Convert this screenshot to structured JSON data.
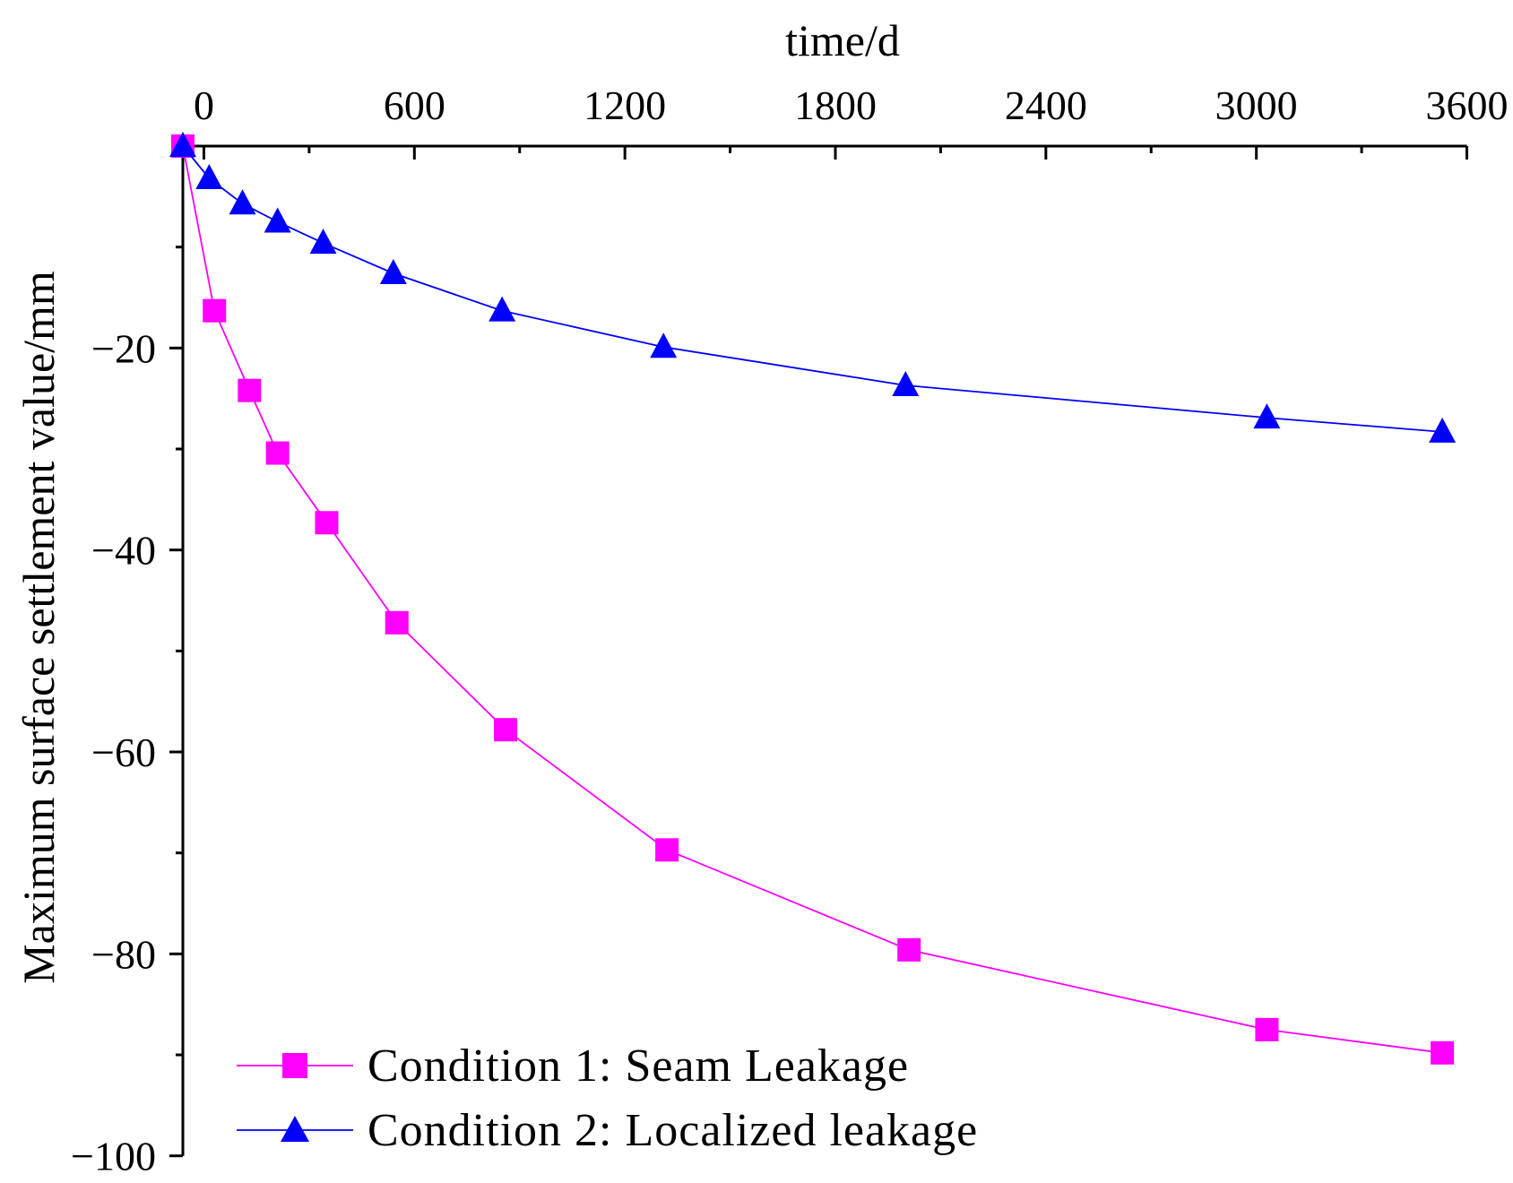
{
  "chart_data": {
    "type": "line",
    "title": "",
    "xlabel": "time/d",
    "ylabel": "Maximum surface settlement value/mm",
    "x_axis_position": "top",
    "xlim": [
      -60,
      3600
    ],
    "ylim": [
      -100,
      0
    ],
    "x_ticks": [
      0,
      600,
      1200,
      1800,
      2400,
      3000,
      3600
    ],
    "x_tick_labels": [
      "0",
      "600",
      "1200",
      "1800",
      "2400",
      "3000",
      "3600"
    ],
    "y_ticks": [
      -20,
      -40,
      -60,
      -80,
      -100
    ],
    "y_tick_labels": [
      "−20",
      "−40",
      "−60",
      "−80",
      "−100"
    ],
    "grid": false,
    "legend_position": "bottom-left",
    "series": [
      {
        "name": "Condition 1: Seam Leakage",
        "color": "#ff00ff",
        "marker": "square",
        "x": [
          -60,
          30,
          130,
          210,
          350,
          550,
          860,
          1320,
          2010,
          3030,
          3530
        ],
        "y": [
          0,
          -16.3,
          -24.2,
          -30.4,
          -37.3,
          -47.2,
          -57.8,
          -69.7,
          -79.6,
          -87.5,
          -89.8
        ]
      },
      {
        "name": "Condition 2: Localized leakage",
        "color": "#0000ff",
        "marker": "triangle",
        "x": [
          -60,
          15,
          110,
          210,
          340,
          540,
          850,
          1310,
          2000,
          3030,
          3530
        ],
        "y": [
          0,
          -3.2,
          -5.7,
          -7.5,
          -9.6,
          -12.6,
          -16.3,
          -19.9,
          -23.7,
          -26.9,
          -28.3
        ]
      }
    ]
  }
}
